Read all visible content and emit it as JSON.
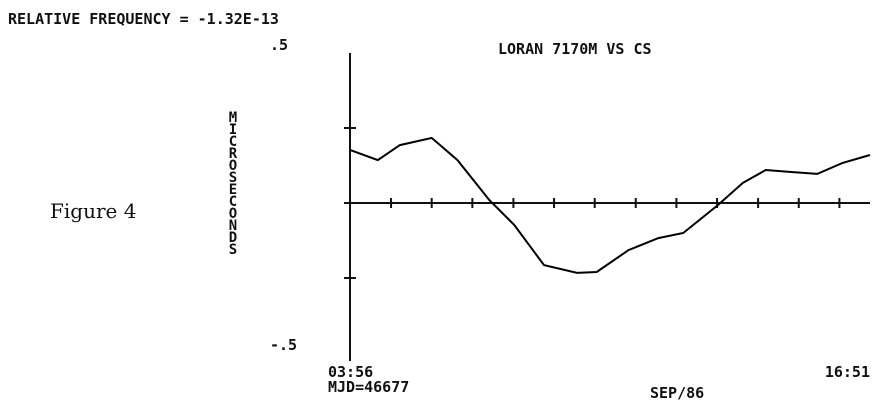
{
  "chart_data": {
    "type": "line",
    "header": "RELATIVE FREQUENCY = -1.32E-13",
    "title": "LORAN 7170M VS CS",
    "y_label": "MICROSECONDS",
    "figure_label": "Figure 4",
    "x_note": "MJD=46677",
    "x_label": "SEP/86",
    "x": [
      3.93,
      4.62,
      5.17,
      5.96,
      6.6,
      7.39,
      8.01,
      8.75,
      9.57,
      10.06,
      10.85,
      11.59,
      12.21,
      13.07,
      13.69,
      14.26,
      14.93,
      15.54,
      16.16,
      16.85
    ],
    "series": [
      {
        "color": "#000000",
        "values": [
          0.177,
          0.143,
          0.193,
          0.217,
          0.143,
          0.01,
          -0.073,
          -0.207,
          -0.233,
          -0.23,
          -0.157,
          -0.117,
          -0.1,
          -0.007,
          0.067,
          0.11,
          0.103,
          0.097,
          0.133,
          0.16
        ]
      }
    ],
    "xlim": [
      3.93,
      16.85
    ],
    "xticks": [
      {
        "value": 3.93,
        "label": "03:56"
      },
      {
        "value": 16.85,
        "label": "16:51"
      }
    ],
    "x_minor_ticks": [
      3.93,
      4.95,
      5.96,
      6.97,
      7.99,
      9.0,
      10.01,
      11.03,
      12.04,
      13.05,
      14.07,
      15.08,
      16.09
    ],
    "ylim": [
      -0.5,
      0.5
    ],
    "yticks": [
      {
        "value": 0.5,
        "label": ".5"
      },
      {
        "value": -0.5,
        "label": "-.5"
      }
    ],
    "y_minor_ticks": [
      0.25,
      0,
      -0.25
    ]
  }
}
